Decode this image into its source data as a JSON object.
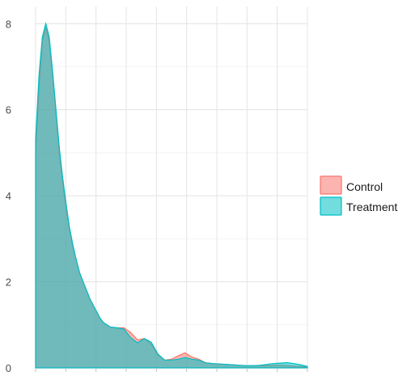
{
  "chart_data": {
    "type": "area",
    "title": "",
    "xlabel": "",
    "ylabel": "",
    "xlim": [
      0,
      40
    ],
    "ylim": [
      0,
      8.4
    ],
    "y_ticks": [
      0,
      2,
      4,
      6,
      8
    ],
    "y_tick_labels": [
      "0",
      "2",
      "4",
      "6",
      "8"
    ],
    "x_tick_count": 9,
    "grid": true,
    "legend_position": "right",
    "series": [
      {
        "name": "Control",
        "fill": "#F8766D",
        "x": [
          0,
          0.5,
          1,
          1.5,
          2,
          2.5,
          3,
          3.5,
          4,
          4.5,
          5,
          5.5,
          6,
          6.5,
          7,
          7.5,
          8,
          8.5,
          9,
          9.5,
          10,
          11,
          12,
          13,
          14,
          15,
          16,
          17,
          18,
          19,
          20,
          21,
          22,
          23,
          24,
          25,
          26,
          27,
          28,
          29,
          30,
          31,
          32,
          33,
          34,
          35,
          36,
          37,
          38,
          39,
          40
        ],
        "y": [
          5.0,
          6.5,
          7.6,
          7.9,
          7.6,
          6.8,
          5.9,
          5.0,
          4.3,
          3.7,
          3.2,
          2.8,
          2.5,
          2.2,
          2.0,
          1.8,
          1.6,
          1.45,
          1.3,
          1.15,
          1.05,
          0.95,
          0.93,
          0.93,
          0.82,
          0.65,
          0.68,
          0.55,
          0.3,
          0.18,
          0.2,
          0.28,
          0.35,
          0.25,
          0.2,
          0.12,
          0.1,
          0.09,
          0.08,
          0.07,
          0.06,
          0.05,
          0.05,
          0.05,
          0.05,
          0.06,
          0.06,
          0.05,
          0.04,
          0.03,
          0.02
        ]
      },
      {
        "name": "Treatment",
        "fill": "#00BFC4",
        "x": [
          0,
          0.5,
          1,
          1.5,
          2,
          2.5,
          3,
          3.5,
          4,
          4.5,
          5,
          5.5,
          6,
          6.5,
          7,
          7.5,
          8,
          8.5,
          9,
          9.5,
          10,
          11,
          12,
          13,
          14,
          15,
          16,
          17,
          18,
          19,
          20,
          21,
          22,
          23,
          24,
          25,
          26,
          27,
          28,
          29,
          30,
          31,
          32,
          33,
          34,
          35,
          36,
          37,
          38,
          39,
          40
        ],
        "y": [
          5.3,
          6.8,
          7.7,
          8.0,
          7.7,
          6.9,
          6.0,
          5.1,
          4.4,
          3.8,
          3.25,
          2.85,
          2.5,
          2.2,
          2.0,
          1.8,
          1.6,
          1.45,
          1.3,
          1.15,
          1.05,
          0.95,
          0.93,
          0.9,
          0.7,
          0.58,
          0.68,
          0.6,
          0.32,
          0.18,
          0.18,
          0.2,
          0.24,
          0.2,
          0.18,
          0.12,
          0.1,
          0.09,
          0.08,
          0.07,
          0.06,
          0.05,
          0.05,
          0.06,
          0.08,
          0.1,
          0.11,
          0.12,
          0.1,
          0.07,
          0.03
        ]
      }
    ]
  }
}
